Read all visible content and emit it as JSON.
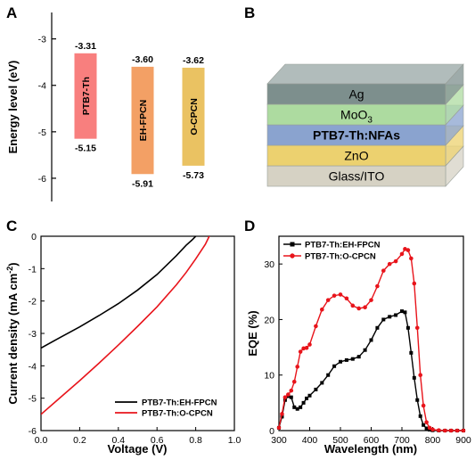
{
  "panels": {
    "a": "A",
    "b": "B",
    "c": "C",
    "d": "D"
  },
  "chart_data": [
    {
      "type": "bar",
      "title": "",
      "ylabel": "Energy level (eV)",
      "ylim": [
        -6.5,
        -2.7
      ],
      "yticks": [
        "-3",
        "-4",
        "-5",
        "-6"
      ],
      "categories": [
        "PTB7-Th",
        "EH-FPCN",
        "O-CPCN"
      ],
      "lumo_labels": [
        "-3.31",
        "-3.60",
        "-3.62"
      ],
      "homo_labels": [
        "-5.15",
        "-5.91",
        "-5.73"
      ],
      "lumo": [
        -3.31,
        -3.6,
        -3.62
      ],
      "homo": [
        -5.15,
        -5.91,
        -5.73
      ],
      "colors": [
        "#f87f7e",
        "#f3a065",
        "#eac262"
      ]
    },
    {
      "type": "line",
      "xlabel": "Voltage (V)",
      "ylabel_main": "Current density (mA cm",
      "ylabel_sup": "-2",
      "ylabel_end": ")",
      "xlim": [
        0.0,
        1.0
      ],
      "ylim": [
        -6,
        0
      ],
      "xticks": [
        "0.0",
        "0.2",
        "0.4",
        "0.6",
        "0.8",
        "1.0"
      ],
      "yticks": [
        "0",
        "-1",
        "-2",
        "-3",
        "-4",
        "-5",
        "-6"
      ],
      "series": [
        {
          "name": "PTB7-Th:EH-FPCN",
          "color": "#000000",
          "x": [
            0,
            0.1,
            0.2,
            0.3,
            0.4,
            0.5,
            0.6,
            0.7,
            0.75,
            0.78,
            0.8,
            0.82
          ],
          "y": [
            -3.45,
            -3.12,
            -2.8,
            -2.45,
            -2.08,
            -1.66,
            -1.18,
            -0.6,
            -0.28,
            -0.12,
            0,
            0.3
          ]
        },
        {
          "name": "PTB7-Th:O-CPCN",
          "color": "#e8141b",
          "x": [
            0,
            0.1,
            0.2,
            0.3,
            0.4,
            0.5,
            0.6,
            0.7,
            0.75,
            0.8,
            0.85,
            0.87,
            0.89
          ],
          "y": [
            -5.5,
            -4.98,
            -4.46,
            -3.92,
            -3.36,
            -2.78,
            -2.18,
            -1.5,
            -1.12,
            -0.7,
            -0.25,
            0,
            0.3
          ]
        }
      ]
    },
    {
      "type": "line",
      "xlabel": "Wavelength (nm)",
      "ylabel": "EQE (%)",
      "xlim": [
        300,
        900
      ],
      "ylim": [
        0,
        35
      ],
      "xticks": [
        "300",
        "400",
        "500",
        "600",
        "700",
        "800",
        "900"
      ],
      "yticks": [
        "0",
        "10",
        "20",
        "30"
      ],
      "series": [
        {
          "name": "PTB7-Th:EH-FPCN",
          "color": "#000000",
          "marker": "square",
          "x": [
            300,
            310,
            320,
            330,
            340,
            350,
            360,
            370,
            380,
            390,
            400,
            420,
            440,
            460,
            480,
            500,
            520,
            540,
            560,
            580,
            600,
            620,
            640,
            660,
            680,
            700,
            710,
            720,
            730,
            740,
            750,
            760,
            770,
            780,
            790,
            800,
            820,
            840,
            860,
            880,
            900
          ],
          "y": [
            0.5,
            2.5,
            5.5,
            6.2,
            6.0,
            4.2,
            3.9,
            4.2,
            5.0,
            5.8,
            6.3,
            7.4,
            8.6,
            10.0,
            11.6,
            12.4,
            12.7,
            12.9,
            13.3,
            14.5,
            16.3,
            18.5,
            20.0,
            20.5,
            20.8,
            21.5,
            21.3,
            18.5,
            14.0,
            9.5,
            5.5,
            2.6,
            1.0,
            0.4,
            0.15,
            0.05,
            0.0,
            0.0,
            0.0,
            0.0,
            0.0
          ]
        },
        {
          "name": "PTB7-Th:O-CPCN",
          "color": "#e8141b",
          "marker": "circle",
          "x": [
            300,
            310,
            320,
            330,
            340,
            350,
            360,
            370,
            380,
            390,
            400,
            420,
            440,
            460,
            480,
            500,
            520,
            540,
            560,
            580,
            600,
            620,
            640,
            660,
            680,
            700,
            710,
            720,
            730,
            740,
            750,
            760,
            770,
            780,
            790,
            800,
            820,
            840,
            860,
            880,
            900
          ],
          "y": [
            0.5,
            3.0,
            6.0,
            6.5,
            7.2,
            8.8,
            11.5,
            14.2,
            14.8,
            14.9,
            15.5,
            18.8,
            21.8,
            23.5,
            24.3,
            24.5,
            23.8,
            22.5,
            22.0,
            22.2,
            23.5,
            26.0,
            28.8,
            30.0,
            30.5,
            31.8,
            32.7,
            32.5,
            31.0,
            26.5,
            18.5,
            10.0,
            4.5,
            1.5,
            0.5,
            0.2,
            0.05,
            0.0,
            0.0,
            0.0,
            0.0
          ]
        }
      ]
    }
  ],
  "device_stack": {
    "layers": [
      {
        "label": "Ag",
        "color": "#7d8f8d"
      },
      {
        "label": "MoO",
        "sub": "3",
        "color": "#addba0"
      },
      {
        "label": "PTB7-Th:NFAs",
        "color": "#8aa3cf",
        "bold": true
      },
      {
        "label": "ZnO",
        "color": "#ecd16f"
      },
      {
        "label": "Glass/ITO",
        "color": "#d6d2c4"
      }
    ]
  }
}
